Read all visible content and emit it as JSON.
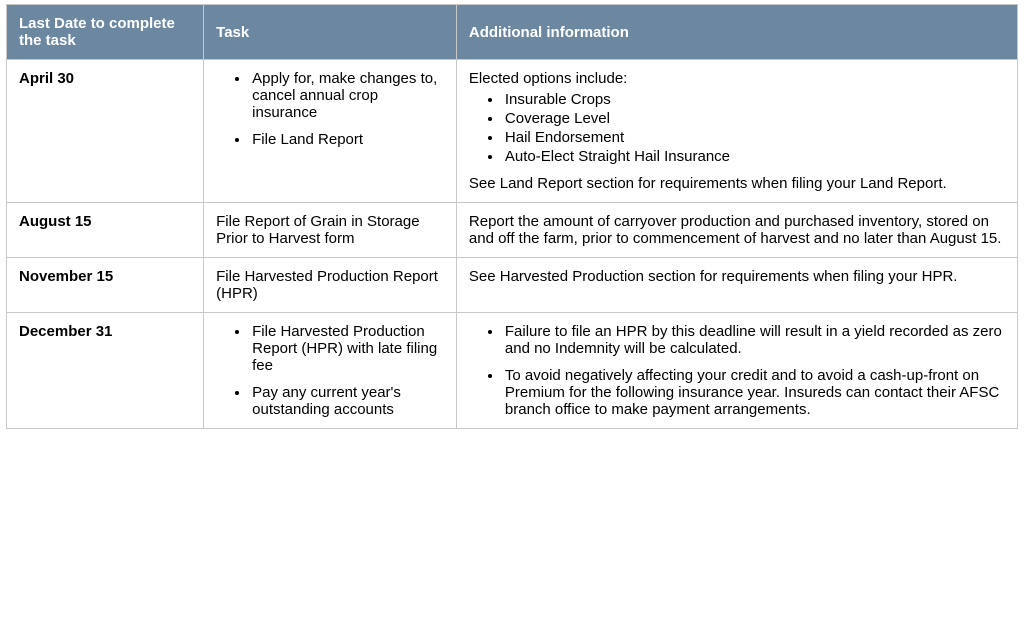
{
  "table": {
    "header_color": "#6C87A0",
    "border_color": "#c8c8c8",
    "col_widths_pct": [
      19.5,
      25.0,
      55.5
    ],
    "columns": [
      "Last Date to complete the task",
      "Task",
      "Additional information"
    ],
    "rows": [
      {
        "date": "April 30",
        "task": {
          "type": "bullets",
          "items": [
            "Apply for, make changes to, cancel annual crop insurance",
            "File Land Report"
          ]
        },
        "info": {
          "type": "intro_bullets_outro",
          "intro": "Elected options include:",
          "items": [
            "Insurable Crops",
            "Coverage Level",
            "Hail Endorsement",
            "Auto-Elect Straight Hail Insurance"
          ],
          "outro": "See Land Report section for requirements when filing your Land Report."
        }
      },
      {
        "date": "August 15",
        "task": {
          "type": "text",
          "text": "File Report of Grain in Storage Prior to Harvest form"
        },
        "info": {
          "type": "text",
          "text": "Report the amount of carryover production and purchased inventory, stored on and off the farm, prior to commencement of harvest and no later than August 15."
        }
      },
      {
        "date": "November 15",
        "task": {
          "type": "text",
          "text": "File Harvested Production Report (HPR)"
        },
        "info": {
          "type": "text",
          "text": "See Harvested Production section for requirements when filing your HPR."
        }
      },
      {
        "date": "December 31",
        "task": {
          "type": "bullets",
          "items": [
            "File Harvested Production Report (HPR) with late filing fee",
            "Pay any current year's outstanding accounts"
          ]
        },
        "info": {
          "type": "bullets",
          "items": [
            "Failure to file an HPR by this deadline will result in a yield recorded as zero and no Indemnity will be calculated.",
            "To avoid negatively affecting your credit and to avoid a cash-up-front on Premium for the following insurance year. Insureds can contact their AFSC branch office to make payment arrangements."
          ]
        }
      }
    ]
  }
}
